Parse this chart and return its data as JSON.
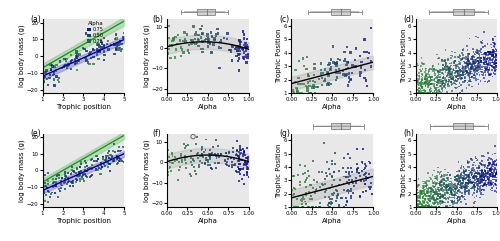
{
  "fig_width": 5.0,
  "fig_height": 2.41,
  "dpi": 100,
  "panel_labels": [
    "(a)",
    "(b)",
    "(c)",
    "(d)",
    "(e)",
    "(f)",
    "(g)",
    "(h)"
  ],
  "color_green": "#2d8b2d",
  "color_blue": "#00008B",
  "color_black": "#111111",
  "color_gray_band": "#aaaaaa",
  "color_bg": "#e8e8e8",
  "scatter_size_small": 3,
  "scatter_size_large": 2,
  "scatter_alpha": 0.75,
  "line_width": 1.0,
  "legend_alpha_vals": [
    0.75,
    0.5,
    0.25
  ],
  "fs_label": 5,
  "fs_tick": 4,
  "fs_panel": 5.5
}
